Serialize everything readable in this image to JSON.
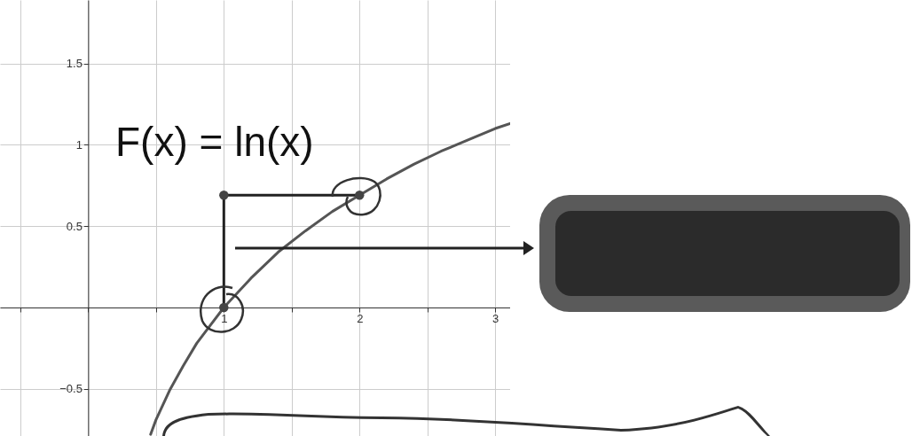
{
  "chart_data": {
    "type": "line",
    "xlim": [
      -0.65,
      3.11
    ],
    "ylim": [
      -0.79,
      1.89
    ],
    "xticks": [
      {
        "value": -0.5,
        "label": null
      },
      {
        "value": 0,
        "label": null
      },
      {
        "value": 0.5,
        "label": null
      },
      1,
      {
        "value": 1.5,
        "label": null
      },
      2,
      {
        "value": 2.5,
        "label": null
      },
      3
    ],
    "yticks": [
      {
        "value": -0.5,
        "label": "−0.5"
      },
      {
        "value": 0,
        "label": null
      },
      0.5,
      1,
      1.5
    ],
    "grid": true,
    "annotations": [
      "F(x) = ln(x)"
    ],
    "series": [
      {
        "color": "#555555",
        "x": [
          0.46,
          0.5,
          0.6,
          0.7,
          0.8,
          0.9,
          1,
          1.2,
          1.4,
          1.6,
          1.8,
          2,
          2.2,
          2.4,
          2.6,
          2.8,
          3,
          3.11
        ],
        "values": [
          -0.78,
          -0.69,
          -0.51,
          -0.36,
          -0.22,
          -0.11,
          0,
          0.18,
          0.34,
          0.47,
          0.59,
          0.69,
          0.79,
          0.88,
          0.96,
          1.03,
          1.1,
          1.13
        ]
      },
      {
        "color": "#222222",
        "x": [
          1,
          1
        ],
        "values": [
          0,
          0.69
        ]
      },
      {
        "color": "#222222",
        "x": [
          1,
          2
        ],
        "values": [
          0.69,
          0.69
        ]
      },
      {
        "type": "scatter",
        "color": "#444444",
        "x": [
          1,
          1,
          2
        ],
        "values": [
          0,
          0.69,
          0.69
        ]
      }
    ]
  }
}
